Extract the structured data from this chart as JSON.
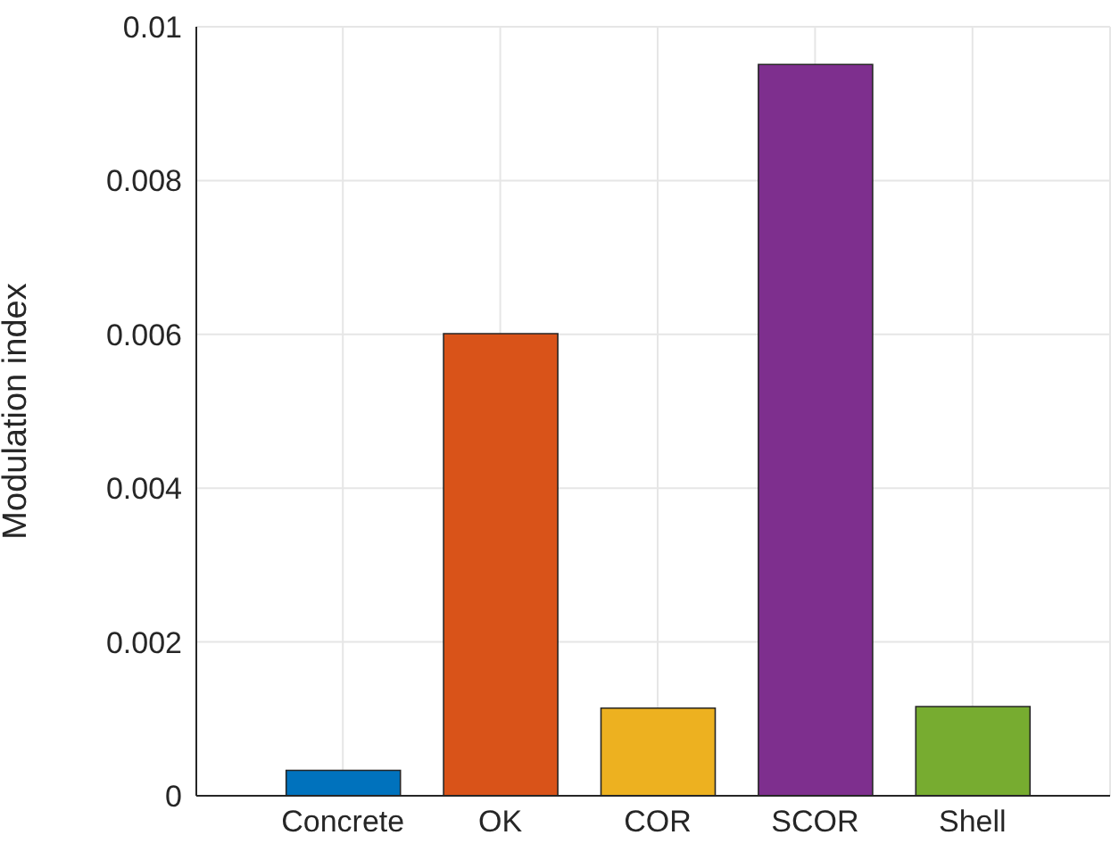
{
  "chart_data": {
    "type": "bar",
    "ylabel": "Modulation index",
    "categories": [
      "Concrete",
      "OK",
      "COR",
      "SCOR",
      "Shell"
    ],
    "values": [
      0.00033,
      0.00601,
      0.00114,
      0.00951,
      0.00116
    ],
    "colors": [
      "#0072bd",
      "#d95319",
      "#edb120",
      "#7e2f8e",
      "#77ac30"
    ],
    "ylim": [
      0,
      0.01
    ],
    "yticks": [
      0,
      0.002,
      0.004,
      0.006,
      0.008,
      0.01
    ],
    "grid": true
  }
}
